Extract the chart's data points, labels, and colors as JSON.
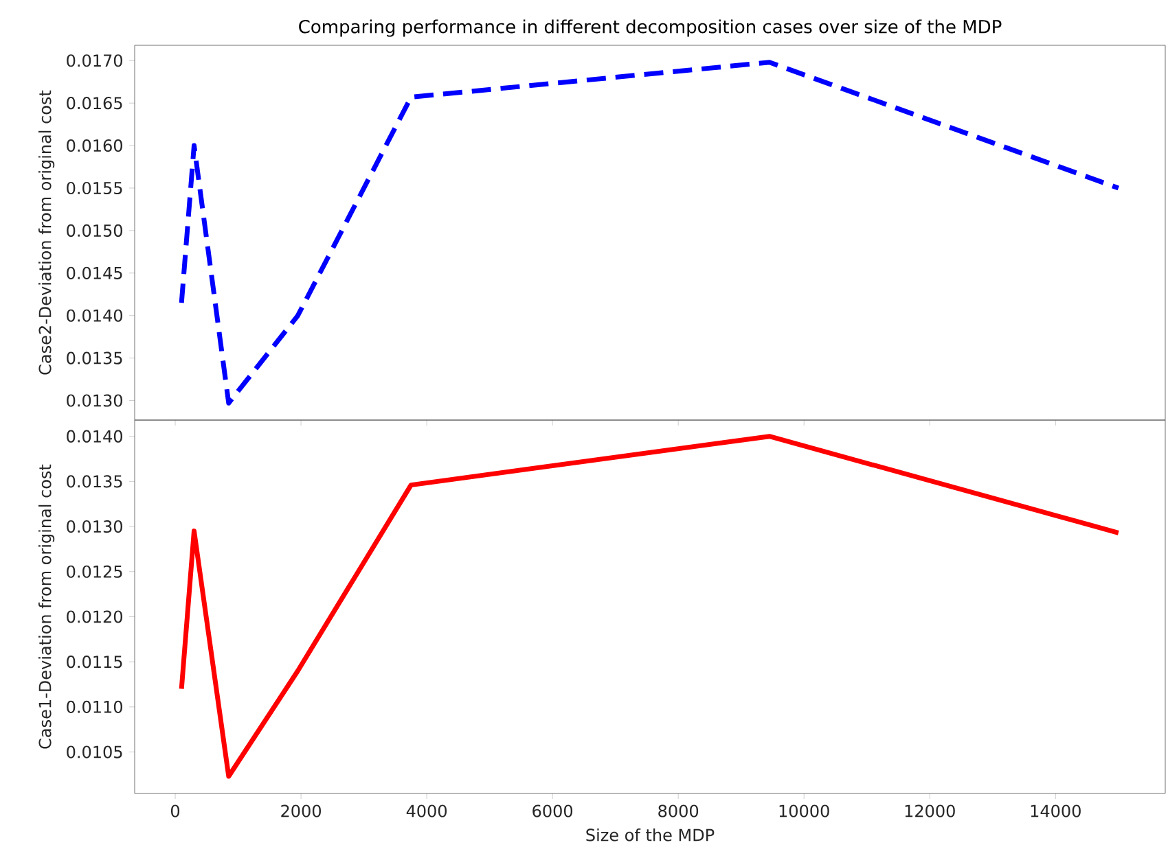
{
  "chart_data": [
    {
      "type": "line",
      "title": "Comparing performance in different decomposition cases over size of the MDP",
      "ylabel": "Case2-Deviation from original cost",
      "x": [
        100,
        300,
        850,
        1950,
        3750,
        9450,
        15000
      ],
      "xlim": [
        -645,
        15745
      ],
      "xticks": [
        0,
        2000,
        4000,
        6000,
        8000,
        10000,
        12000,
        14000
      ],
      "ylim": [
        0.01277,
        0.01718
      ],
      "yticks": [
        {
          "value": 0.013,
          "label": "0.0130"
        },
        {
          "value": 0.0135,
          "label": "0.0135"
        },
        {
          "value": 0.014,
          "label": "0.0140"
        },
        {
          "value": 0.0145,
          "label": "0.0145"
        },
        {
          "value": 0.015,
          "label": "0.0150"
        },
        {
          "value": 0.0155,
          "label": "0.0155"
        },
        {
          "value": 0.016,
          "label": "0.0160"
        },
        {
          "value": 0.0165,
          "label": "0.0165"
        },
        {
          "value": 0.017,
          "label": "0.0170"
        }
      ],
      "tick_labels": "y",
      "line_style": "dashed",
      "series": [
        {
          "color": "#0000ff",
          "values": [
            0.01415,
            0.016,
            0.01297,
            0.014,
            0.01657,
            0.01698,
            0.0155
          ]
        }
      ]
    },
    {
      "type": "line",
      "xlabel": "Size of the MDP",
      "ylabel": "Case1-Deviation from original cost",
      "x": [
        100,
        300,
        850,
        1950,
        3750,
        9450,
        15000
      ],
      "xlim": [
        -645,
        15745
      ],
      "xticks": [
        0,
        2000,
        4000,
        6000,
        8000,
        10000,
        12000,
        14000
      ],
      "ylim": [
        0.01004,
        0.01418
      ],
      "yticks": [
        {
          "value": 0.0105,
          "label": "0.0105"
        },
        {
          "value": 0.011,
          "label": "0.0110"
        },
        {
          "value": 0.0115,
          "label": "0.0115"
        },
        {
          "value": 0.012,
          "label": "0.0120"
        },
        {
          "value": 0.0125,
          "label": "0.0125"
        },
        {
          "value": 0.013,
          "label": "0.0130"
        },
        {
          "value": 0.0135,
          "label": "0.0135"
        },
        {
          "value": 0.014,
          "label": "0.0140"
        }
      ],
      "line_style": "solid",
      "series": [
        {
          "color": "#ff0000",
          "values": [
            0.0112,
            0.01295,
            0.01023,
            0.0114,
            0.01346,
            0.014,
            0.01293
          ]
        }
      ]
    }
  ]
}
